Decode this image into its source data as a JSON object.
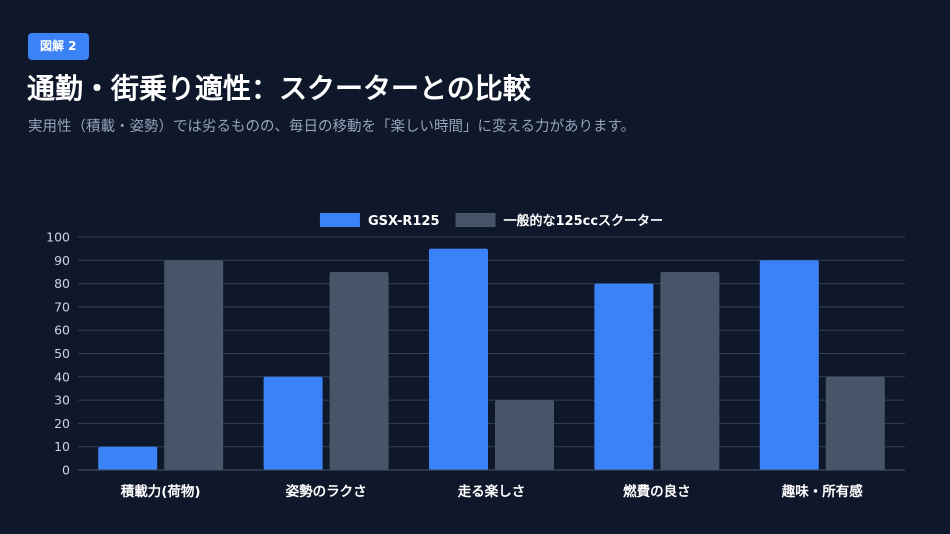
{
  "header": {
    "badge": "図解 2",
    "title": "通勤・街乗り適性：スクーターとの比較",
    "subtitle": "実用性（積載・姿勢）では劣るものの、毎日の移動を「楽しい時間」に変える力があります。"
  },
  "chart_data": {
    "type": "bar",
    "categories": [
      "積載力(荷物)",
      "姿勢のラクさ",
      "走る楽しさ",
      "燃費の良さ",
      "趣味・所有感"
    ],
    "series": [
      {
        "name": "GSX-R125",
        "color": "#3b82f6",
        "values": [
          10,
          40,
          95,
          80,
          90
        ]
      },
      {
        "name": "一般的な125ccスクーター",
        "color": "#475569",
        "values": [
          90,
          85,
          30,
          85,
          40
        ]
      }
    ],
    "ylim": [
      0,
      100
    ],
    "yticks": [
      0,
      10,
      20,
      30,
      40,
      50,
      60,
      70,
      80,
      90,
      100
    ],
    "grid": true,
    "legend_position": "top-center"
  }
}
